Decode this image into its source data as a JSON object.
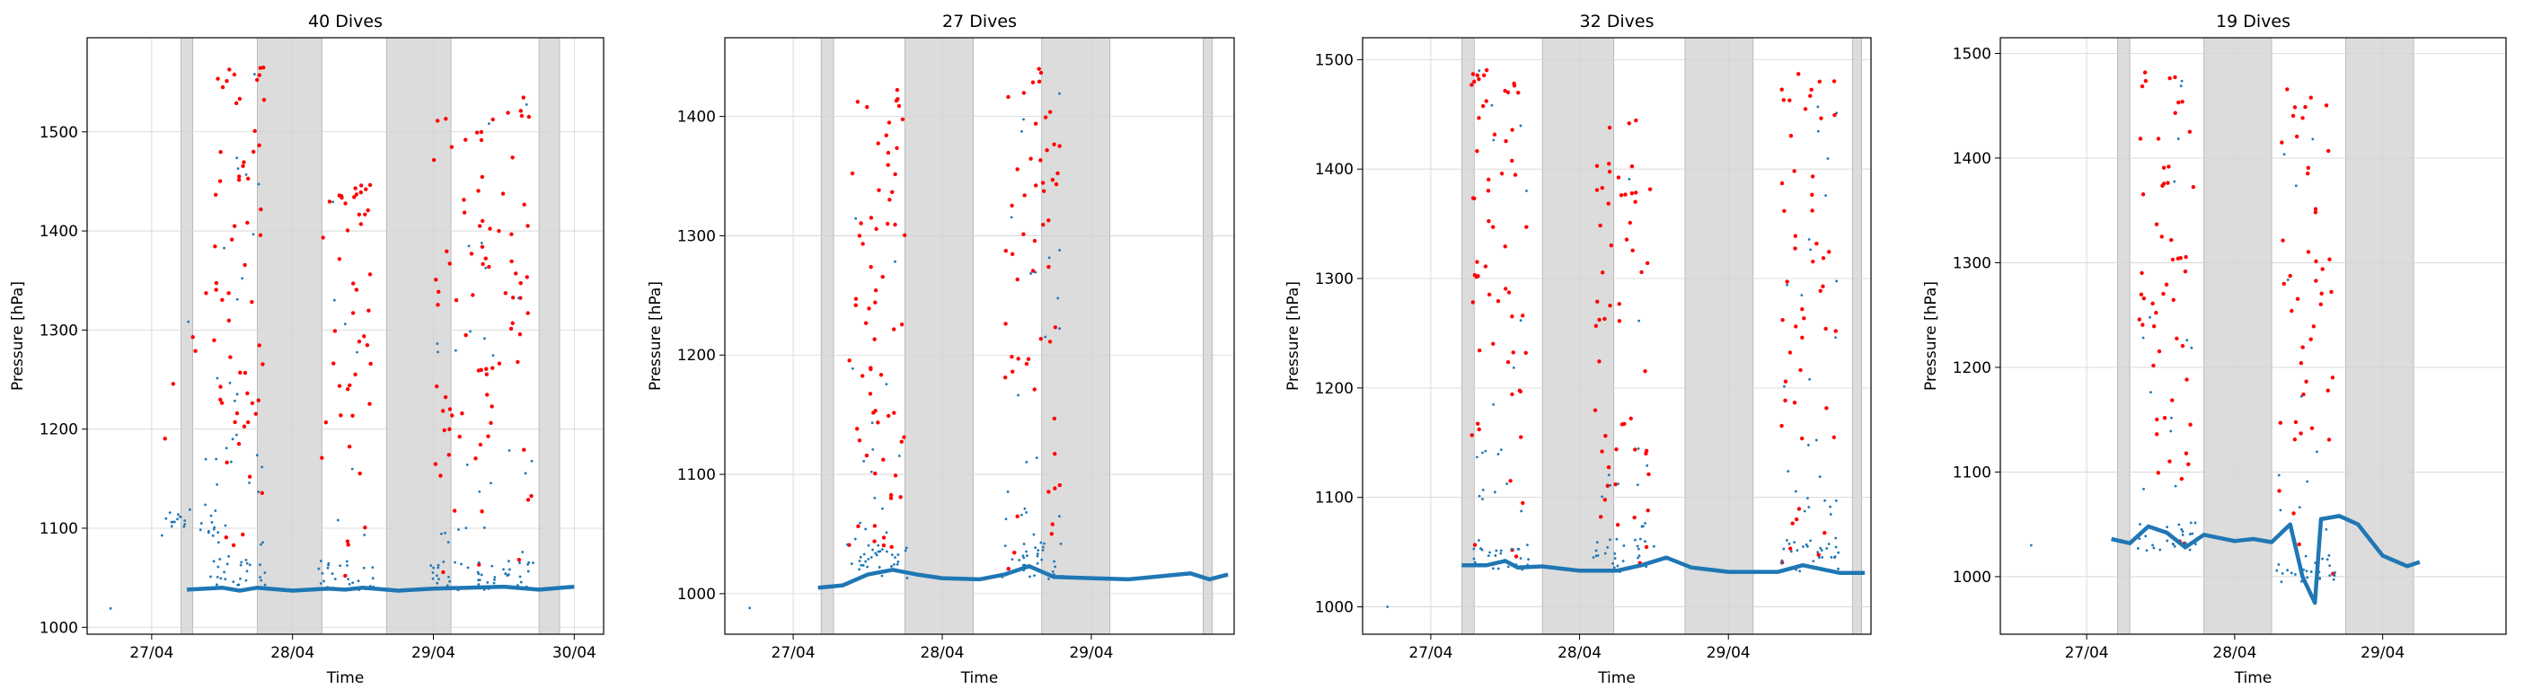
{
  "colors": {
    "surface": "#1f77b4",
    "dive_point": "#ff0000",
    "night_band": "#dcdcdc",
    "grid": "#d3d3d3"
  },
  "chart_data": [
    {
      "type": "scatter",
      "title": "40 Dives",
      "xlabel": "Time",
      "ylabel": "Pressure [hPa]",
      "x_range": [
        "2016-04-26T13:00",
        "2016-04-30T05:00"
      ],
      "y_range": [
        993,
        1595
      ],
      "x_ticks": [
        {
          "value": "2016-04-27T00:00",
          "label": "27/04"
        },
        {
          "value": "2016-04-28T00:00",
          "label": "28/04"
        },
        {
          "value": "2016-04-29T00:00",
          "label": "29/04"
        },
        {
          "value": "2016-04-30T00:00",
          "label": "30/04"
        }
      ],
      "y_ticks": [
        1000,
        1100,
        1200,
        1300,
        1400,
        1500
      ],
      "grid": true,
      "night_bands": [
        [
          "2016-04-27T05:00",
          "2016-04-27T07:00"
        ],
        [
          "2016-04-27T18:00",
          "2016-04-28T05:00"
        ],
        [
          "2016-04-28T16:00",
          "2016-04-29T03:00"
        ],
        [
          "2016-04-29T18:00",
          "2016-04-29T21:30"
        ]
      ],
      "outlier_points": [
        [
          "2016-04-26T17:00",
          1019
        ]
      ],
      "surface_trace": [
        [
          "2016-04-27T06:00",
          1038
        ],
        [
          "2016-04-27T12:00",
          1040
        ],
        [
          "2016-04-27T15:00",
          1037
        ],
        [
          "2016-04-27T18:00",
          1040
        ],
        [
          "2016-04-28T00:00",
          1037
        ],
        [
          "2016-04-28T06:00",
          1039
        ],
        [
          "2016-04-28T09:00",
          1038
        ],
        [
          "2016-04-28T12:00",
          1040
        ],
        [
          "2016-04-28T18:00",
          1037
        ],
        [
          "2016-04-29T00:00",
          1039
        ],
        [
          "2016-04-29T06:00",
          1040
        ],
        [
          "2016-04-29T12:00",
          1041
        ],
        [
          "2016-04-29T18:00",
          1038
        ],
        [
          "2016-04-30T00:00",
          1041
        ]
      ],
      "dive_groups": [
        {
          "time": "2016-04-27T06:30",
          "y_min": 1100,
          "y_max": 1400,
          "count": 8
        },
        {
          "time": "2016-04-27T15:00",
          "y_min": 1050,
          "y_max": 1570,
          "count": 90
        },
        {
          "time": "2016-04-28T09:00",
          "y_min": 1045,
          "y_max": 1455,
          "count": 55
        },
        {
          "time": "2016-04-29T04:30",
          "y_min": 1045,
          "y_max": 1525,
          "count": 55
        },
        {
          "time": "2016-04-29T12:30",
          "y_min": 1045,
          "y_max": 1560,
          "count": 55
        }
      ]
    },
    {
      "type": "scatter",
      "title": "27 Dives",
      "xlabel": "Time",
      "ylabel": "Pressure [hPa]",
      "x_range": [
        "2016-04-26T13:00",
        "2016-04-29T23:00"
      ],
      "y_range": [
        966,
        1466
      ],
      "x_ticks": [
        {
          "value": "2016-04-27T00:00",
          "label": "27/04"
        },
        {
          "value": "2016-04-28T00:00",
          "label": "28/04"
        },
        {
          "value": "2016-04-29T00:00",
          "label": "29/04"
        }
      ],
      "y_ticks": [
        1000,
        1100,
        1200,
        1300,
        1400
      ],
      "grid": true,
      "night_bands": [
        [
          "2016-04-27T04:30",
          "2016-04-27T06:30"
        ],
        [
          "2016-04-27T18:00",
          "2016-04-28T05:00"
        ],
        [
          "2016-04-28T16:00",
          "2016-04-29T03:00"
        ],
        [
          "2016-04-29T18:00",
          "2016-04-29T19:30"
        ]
      ],
      "outlier_points": [
        [
          "2016-04-26T17:00",
          988
        ]
      ],
      "surface_trace": [
        [
          "2016-04-27T04:00",
          1005
        ],
        [
          "2016-04-27T08:00",
          1007
        ],
        [
          "2016-04-27T12:00",
          1016
        ],
        [
          "2016-04-27T16:00",
          1020
        ],
        [
          "2016-04-27T20:00",
          1016
        ],
        [
          "2016-04-28T00:00",
          1013
        ],
        [
          "2016-04-28T06:00",
          1012
        ],
        [
          "2016-04-28T10:00",
          1016
        ],
        [
          "2016-04-28T14:00",
          1023
        ],
        [
          "2016-04-28T18:00",
          1014
        ],
        [
          "2016-04-29T00:00",
          1013
        ],
        [
          "2016-04-29T06:00",
          1012
        ],
        [
          "2016-04-29T12:00",
          1015
        ],
        [
          "2016-04-29T16:00",
          1017
        ],
        [
          "2016-04-29T19:00",
          1012
        ],
        [
          "2016-04-29T22:00",
          1016
        ]
      ],
      "dive_groups": [
        {
          "time": "2016-04-27T13:30",
          "y_min": 1020,
          "y_max": 1430,
          "count": 90
        },
        {
          "time": "2016-04-28T14:30",
          "y_min": 1020,
          "y_max": 1440,
          "count": 80
        }
      ]
    },
    {
      "type": "scatter",
      "title": "32 Dives",
      "xlabel": "Time",
      "ylabel": "Pressure [hPa]",
      "x_range": [
        "2016-04-26T13:00",
        "2016-04-29T23:00"
      ],
      "y_range": [
        975,
        1520
      ],
      "x_ticks": [
        {
          "value": "2016-04-27T00:00",
          "label": "27/04"
        },
        {
          "value": "2016-04-28T00:00",
          "label": "28/04"
        },
        {
          "value": "2016-04-29T00:00",
          "label": "29/04"
        }
      ],
      "y_ticks": [
        1000,
        1100,
        1200,
        1300,
        1400,
        1500
      ],
      "grid": true,
      "night_bands": [
        [
          "2016-04-27T05:00",
          "2016-04-27T07:00"
        ],
        [
          "2016-04-27T18:00",
          "2016-04-28T05:30"
        ],
        [
          "2016-04-28T17:00",
          "2016-04-29T04:00"
        ],
        [
          "2016-04-29T20:00",
          "2016-04-29T21:30"
        ]
      ],
      "outlier_points": [
        [
          "2016-04-26T17:00",
          1000
        ]
      ],
      "surface_trace": [
        [
          "2016-04-27T05:00",
          1038
        ],
        [
          "2016-04-27T09:00",
          1038
        ],
        [
          "2016-04-27T12:00",
          1042
        ],
        [
          "2016-04-27T14:00",
          1036
        ],
        [
          "2016-04-27T18:00",
          1037
        ],
        [
          "2016-04-28T00:00",
          1033
        ],
        [
          "2016-04-28T06:00",
          1033
        ],
        [
          "2016-04-28T10:00",
          1038
        ],
        [
          "2016-04-28T14:00",
          1045
        ],
        [
          "2016-04-28T18:00",
          1036
        ],
        [
          "2016-04-29T00:00",
          1032
        ],
        [
          "2016-04-29T08:00",
          1032
        ],
        [
          "2016-04-29T12:00",
          1038
        ],
        [
          "2016-04-29T18:00",
          1031
        ],
        [
          "2016-04-29T22:00",
          1031
        ]
      ],
      "dive_groups": [
        {
          "time": "2016-04-27T11:00",
          "y_min": 1040,
          "y_max": 1495,
          "count": 80
        },
        {
          "time": "2016-04-28T07:00",
          "y_min": 1040,
          "y_max": 1445,
          "count": 70
        },
        {
          "time": "2016-04-29T13:00",
          "y_min": 1040,
          "y_max": 1495,
          "count": 80
        }
      ]
    },
    {
      "type": "scatter",
      "title": "19 Dives",
      "xlabel": "Time",
      "ylabel": "Pressure [hPa]",
      "x_range": [
        "2016-04-26T10:00",
        "2016-04-29T20:00"
      ],
      "y_range": [
        945,
        1515
      ],
      "x_ticks": [
        {
          "value": "2016-04-27T00:00",
          "label": "27/04"
        },
        {
          "value": "2016-04-28T00:00",
          "label": "28/04"
        },
        {
          "value": "2016-04-29T00:00",
          "label": "29/04"
        }
      ],
      "y_ticks": [
        1000,
        1100,
        1200,
        1300,
        1400,
        1500
      ],
      "grid": true,
      "night_bands": [
        [
          "2016-04-27T05:00",
          "2016-04-27T07:00"
        ],
        [
          "2016-04-27T19:00",
          "2016-04-28T06:00"
        ],
        [
          "2016-04-28T18:00",
          "2016-04-29T05:00"
        ]
      ],
      "outlier_points": [
        [
          "2016-04-26T15:00",
          1030
        ]
      ],
      "surface_trace": [
        [
          "2016-04-27T04:00",
          1036
        ],
        [
          "2016-04-27T07:00",
          1032
        ],
        [
          "2016-04-27T10:00",
          1048
        ],
        [
          "2016-04-27T13:00",
          1042
        ],
        [
          "2016-04-27T16:00",
          1028
        ],
        [
          "2016-04-27T19:00",
          1040
        ],
        [
          "2016-04-28T00:00",
          1034
        ],
        [
          "2016-04-28T03:00",
          1036
        ],
        [
          "2016-04-28T06:00",
          1033
        ],
        [
          "2016-04-28T09:00",
          1050
        ],
        [
          "2016-04-28T11:00",
          1000
        ],
        [
          "2016-04-28T13:00",
          975
        ],
        [
          "2016-04-28T14:00",
          1055
        ],
        [
          "2016-04-28T17:00",
          1058
        ],
        [
          "2016-04-28T20:00",
          1050
        ],
        [
          "2016-04-29T00:00",
          1020
        ],
        [
          "2016-04-29T04:00",
          1010
        ],
        [
          "2016-04-29T06:00",
          1014
        ]
      ],
      "dive_groups": [
        {
          "time": "2016-04-27T13:00",
          "y_min": 1030,
          "y_max": 1490,
          "count": 70
        },
        {
          "time": "2016-04-28T11:30",
          "y_min": 1000,
          "y_max": 1470,
          "count": 60
        }
      ]
    }
  ]
}
